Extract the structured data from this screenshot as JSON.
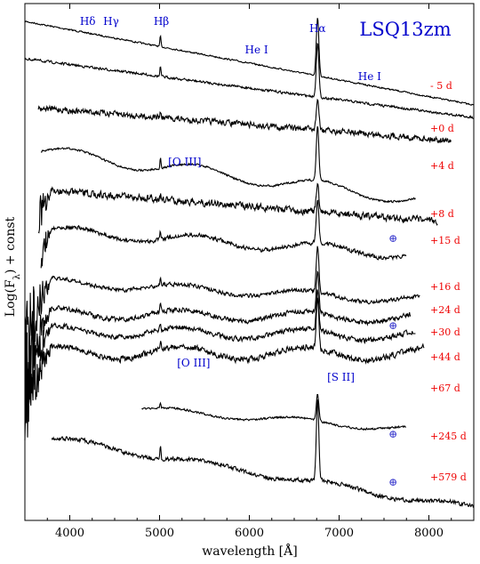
{
  "chart_data": {
    "type": "line",
    "title": "LSQ13zm",
    "xlabel": "wavelength [Å]",
    "ylabel": "Log(F_λ) + const",
    "xlim": [
      3500,
      8500
    ],
    "xticks": [
      4000,
      5000,
      6000,
      7000,
      8000
    ],
    "yticks_shown": false,
    "grid": false,
    "title_placement": "top-right inside axes",
    "series": [
      {
        "epoch": "- 5 d",
        "range": [
          3500,
          8500
        ]
      },
      {
        "epoch": "+0 d",
        "range": [
          3500,
          8500
        ]
      },
      {
        "epoch": "+4 d",
        "range": [
          3650,
          8250
        ]
      },
      {
        "epoch": "+8 d",
        "range": [
          3680,
          7850
        ]
      },
      {
        "epoch": "+15 d",
        "range": [
          3650,
          8100
        ]
      },
      {
        "epoch": "+16 d",
        "range": [
          3680,
          7750
        ]
      },
      {
        "epoch": "+24 d",
        "range": [
          3500,
          7900
        ]
      },
      {
        "epoch": "+30 d",
        "range": [
          3500,
          7800
        ]
      },
      {
        "epoch": "+44 d",
        "range": [
          3500,
          7850
        ]
      },
      {
        "epoch": "+67 d",
        "range": [
          3500,
          7950
        ]
      },
      {
        "epoch": "+245 d",
        "range": [
          4800,
          7750
        ]
      },
      {
        "epoch": "+579 d",
        "range": [
          3800,
          8500
        ]
      }
    ],
    "line_ids": [
      {
        "label": "Hδ",
        "wavelength": 4200
      },
      {
        "label": "Hγ",
        "wavelength": 4460
      },
      {
        "label": "Hβ",
        "wavelength": 5020
      },
      {
        "label": "He I",
        "wavelength": 6080
      },
      {
        "label": "Hα",
        "wavelength": 6760
      },
      {
        "label": "He I",
        "wavelength": 7340
      },
      {
        "label": "[O III]",
        "wavelength": 5280
      },
      {
        "label": "[O III]",
        "wavelength": 5380
      },
      {
        "label": "[S II]",
        "wavelength": 7020
      }
    ],
    "telluric_marker": "⊕",
    "telluric_wavelength": 7600,
    "telluric_epochs": [
      "+15 d",
      "+30 d",
      "+245 d",
      "+579 d"
    ]
  }
}
